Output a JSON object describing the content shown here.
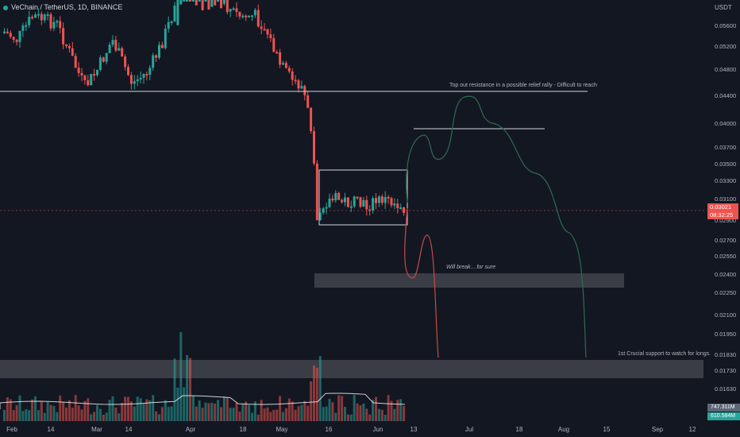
{
  "header": {
    "symbol_line": "VeChain / TetherUS, 1D, BINANCE"
  },
  "price_axis": {
    "unit": "USDT",
    "labels": [
      "0.05600",
      "0.05200",
      "0.04800",
      "0.04400",
      "0.04000",
      "0.03700",
      "0.03500",
      "0.03300",
      "0.03100",
      "0.02900",
      "0.02700",
      "0.02550",
      "0.02400",
      "0.02250",
      "0.02100",
      "0.01950",
      "0.01830",
      "0.01730",
      "0.01630"
    ],
    "current_price": "0.03021",
    "countdown": "08:32:25",
    "volume_labels": [
      "747.311M",
      "610.584M"
    ]
  },
  "time_axis": [
    "Feb",
    "14",
    "Mar",
    "14",
    "Apr",
    "18",
    "May",
    "16",
    "Jun",
    "13",
    "Jul",
    "18",
    "Aug",
    "15",
    "Sep",
    "12"
  ],
  "annotations": {
    "resistance": "Top out resistance in a possible relief rally - Difficult to reach",
    "will_break": "Will break....for sure",
    "support": "1st Crucial support to watch for longs."
  },
  "colors": {
    "background": "#131722",
    "up": "#26a69a",
    "down": "#ef5350",
    "zone": "#3a3d45",
    "line": "#d1d4dc"
  }
}
